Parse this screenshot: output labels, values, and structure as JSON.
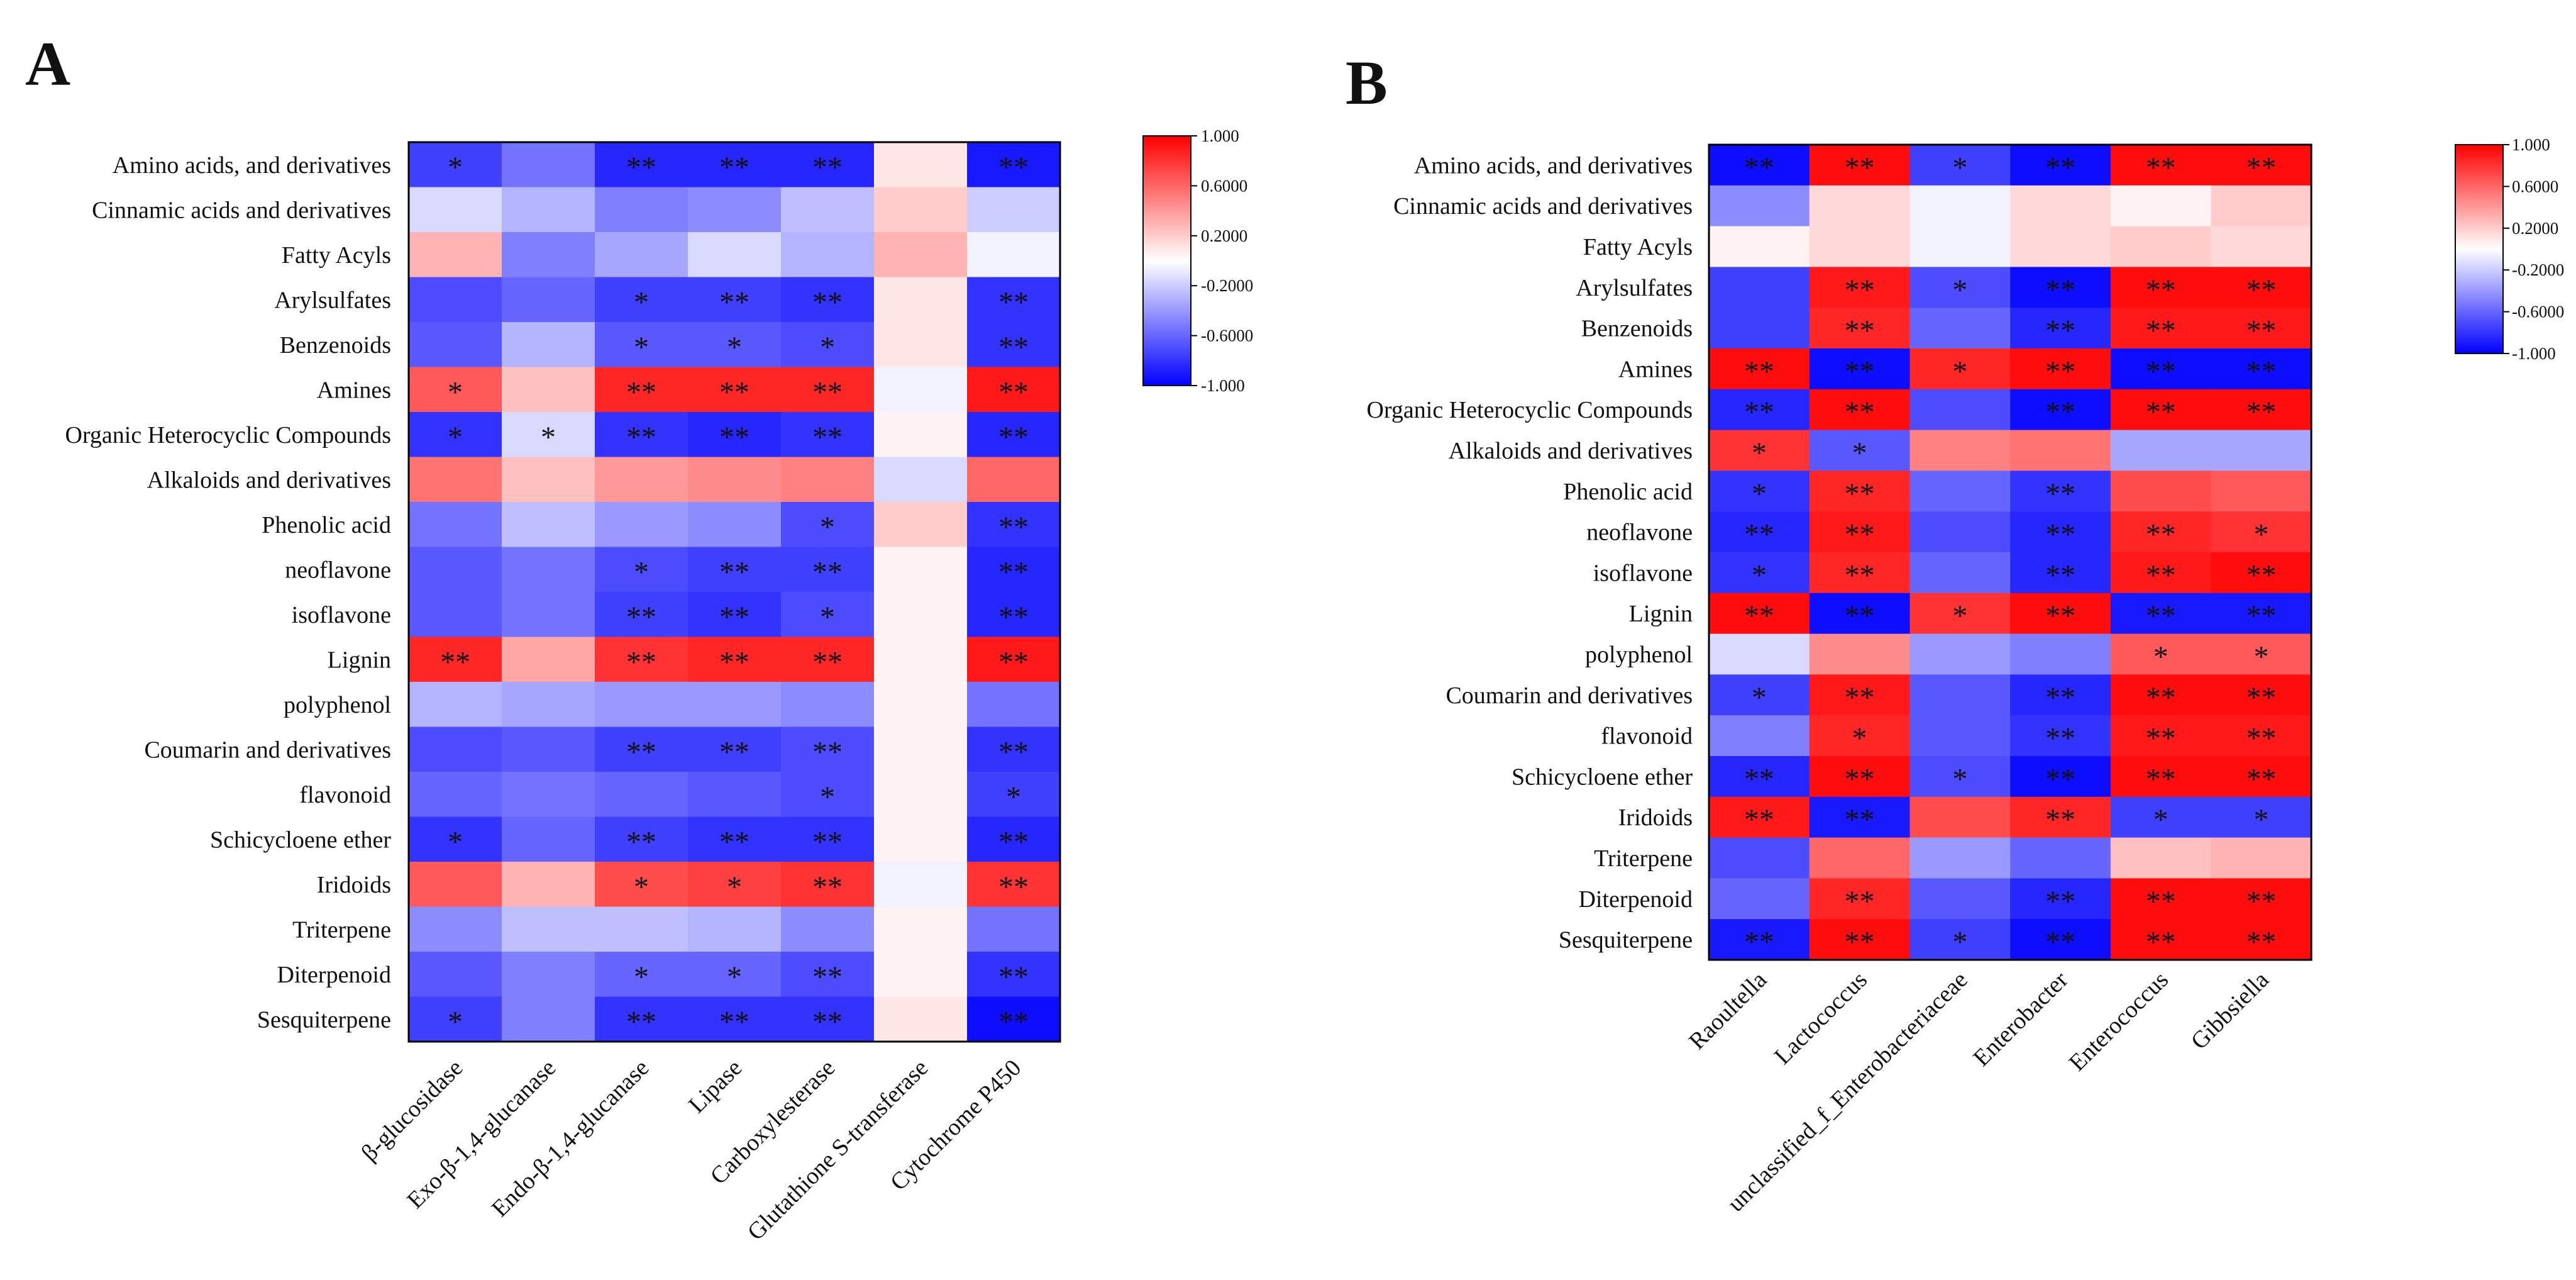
{
  "chart_data": [
    {
      "panel": "A",
      "type": "heatmap",
      "title": "",
      "rows": [
        "Amino acids, and derivatives",
        "Cinnamic acids and derivatives",
        "Fatty Acyls",
        "Arylsulfates",
        "Benzenoids",
        "Amines",
        "Organic Heterocyclic Compounds",
        "Alkaloids and derivatives",
        "Phenolic acid",
        "neoflavone",
        "isoflavone",
        "Lignin",
        "polyphenol",
        "Coumarin and derivatives",
        "flavonoid",
        "Schicycloene ether",
        "Iridoids",
        "Triterpene",
        "Diterpenoid",
        "Sesquiterpene"
      ],
      "columns": [
        "β-glucosidase",
        "Exo-β-1,4-glucanase",
        "Endo-β-1,4-glucanase",
        "Lipase",
        "Carboxylesterase",
        "Glutathione S-transferase",
        "Cytochrome P450"
      ],
      "values": [
        [
          -0.75,
          -0.55,
          -0.85,
          -0.85,
          -0.85,
          0.1,
          -0.9
        ],
        [
          -0.15,
          -0.3,
          -0.5,
          -0.45,
          -0.25,
          0.2,
          -0.2
        ],
        [
          0.3,
          -0.5,
          -0.35,
          -0.15,
          -0.3,
          0.3,
          -0.05
        ],
        [
          -0.7,
          -0.6,
          -0.75,
          -0.75,
          -0.8,
          0.1,
          -0.8
        ],
        [
          -0.65,
          -0.3,
          -0.65,
          -0.65,
          -0.7,
          0.1,
          -0.8
        ],
        [
          0.65,
          0.25,
          0.85,
          0.85,
          0.85,
          -0.05,
          0.9
        ],
        [
          -0.8,
          -0.15,
          -0.8,
          -0.85,
          -0.8,
          0.05,
          -0.85
        ],
        [
          0.55,
          0.25,
          0.4,
          0.45,
          0.5,
          -0.15,
          0.6
        ],
        [
          -0.55,
          -0.25,
          -0.4,
          -0.45,
          -0.7,
          0.2,
          -0.8
        ],
        [
          -0.65,
          -0.55,
          -0.7,
          -0.75,
          -0.75,
          0.05,
          -0.85
        ],
        [
          -0.65,
          -0.55,
          -0.75,
          -0.8,
          -0.7,
          0.05,
          -0.85
        ],
        [
          0.85,
          0.35,
          0.8,
          0.85,
          0.85,
          0.05,
          0.9
        ],
        [
          -0.3,
          -0.35,
          -0.4,
          -0.4,
          -0.45,
          0.05,
          -0.55
        ],
        [
          -0.7,
          -0.65,
          -0.75,
          -0.75,
          -0.7,
          0.05,
          -0.8
        ],
        [
          -0.6,
          -0.55,
          -0.6,
          -0.65,
          -0.7,
          0.05,
          -0.75
        ],
        [
          -0.8,
          -0.6,
          -0.75,
          -0.8,
          -0.8,
          0.05,
          -0.85
        ],
        [
          0.65,
          0.3,
          0.7,
          0.75,
          0.8,
          -0.05,
          0.8
        ],
        [
          -0.45,
          -0.25,
          -0.25,
          -0.3,
          -0.45,
          0.05,
          -0.55
        ],
        [
          -0.65,
          -0.5,
          -0.6,
          -0.6,
          -0.7,
          0.05,
          -0.8
        ],
        [
          -0.75,
          -0.5,
          -0.8,
          -0.8,
          -0.8,
          0.1,
          -0.95
        ]
      ],
      "significance": [
        [
          "*",
          "",
          "**",
          "**",
          "**",
          "",
          "**"
        ],
        [
          "",
          "",
          "",
          "",
          "",
          "",
          ""
        ],
        [
          "",
          "",
          "",
          "",
          "",
          "",
          ""
        ],
        [
          "",
          "",
          "*",
          "**",
          "**",
          "",
          "**"
        ],
        [
          "",
          "",
          "*",
          "*",
          "*",
          "",
          "**"
        ],
        [
          "*",
          "",
          "**",
          "**",
          "**",
          "",
          "**"
        ],
        [
          "*",
          "*",
          "**",
          "**",
          "**",
          "",
          "**"
        ],
        [
          "",
          "",
          "",
          "",
          "",
          "",
          ""
        ],
        [
          "",
          "",
          "",
          "",
          "*",
          "",
          "**"
        ],
        [
          "",
          "",
          "*",
          "**",
          "**",
          "",
          "**"
        ],
        [
          "",
          "",
          "**",
          "**",
          "*",
          "",
          "**"
        ],
        [
          "**",
          "",
          "**",
          "**",
          "**",
          "",
          "**"
        ],
        [
          "",
          "",
          "",
          "",
          "",
          "",
          ""
        ],
        [
          "",
          "",
          "**",
          "**",
          "**",
          "",
          "**"
        ],
        [
          "",
          "",
          "",
          "",
          "*",
          "",
          "*"
        ],
        [
          "*",
          "",
          "**",
          "**",
          "**",
          "",
          "**"
        ],
        [
          "",
          "",
          "*",
          "*",
          "**",
          "",
          "**"
        ],
        [
          "",
          "",
          "",
          "",
          "",
          "",
          ""
        ],
        [
          "",
          "",
          "*",
          "*",
          "**",
          "",
          "**"
        ],
        [
          "*",
          "",
          "**",
          "**",
          "**",
          "",
          "**"
        ]
      ],
      "colorbar": {
        "min": -1,
        "max": 1,
        "labels": [
          "1.000",
          "0.6000",
          "0.2000",
          "-0.2000",
          "-0.6000",
          "-1.000"
        ]
      }
    },
    {
      "panel": "B",
      "type": "heatmap",
      "title": "",
      "rows": [
        "Amino acids, and derivatives",
        "Cinnamic acids and derivatives",
        "Fatty Acyls",
        "Arylsulfates",
        "Benzenoids",
        "Amines",
        "Organic Heterocyclic Compounds",
        "Alkaloids and derivatives",
        "Phenolic acid",
        "neoflavone",
        "isoflavone",
        "Lignin",
        "polyphenol",
        "Coumarin and derivatives",
        "flavonoid",
        "Schicycloene ether",
        "Iridoids",
        "Triterpene",
        "Diterpenoid",
        "Sesquiterpene"
      ],
      "columns": [
        "Raoultella",
        "Lactococcus",
        "unclassified_f_Enterobacteriaceae",
        "Enterobacter",
        "Enterococcus",
        "Gibbsiella"
      ],
      "values": [
        [
          -0.95,
          0.95,
          -0.75,
          -0.95,
          0.95,
          0.95
        ],
        [
          -0.45,
          0.15,
          -0.05,
          0.15,
          0.05,
          0.2
        ],
        [
          0.05,
          0.15,
          -0.05,
          0.15,
          0.2,
          0.15
        ],
        [
          -0.75,
          0.9,
          -0.7,
          -0.95,
          0.95,
          0.95
        ],
        [
          -0.75,
          0.85,
          -0.6,
          -0.85,
          0.9,
          0.9
        ],
        [
          0.95,
          -0.95,
          0.85,
          0.95,
          -0.95,
          -0.95
        ],
        [
          -0.85,
          0.95,
          -0.7,
          -0.95,
          0.95,
          0.95
        ],
        [
          0.8,
          -0.65,
          0.5,
          0.55,
          -0.35,
          -0.35
        ],
        [
          -0.8,
          0.85,
          -0.6,
          -0.8,
          0.7,
          0.65
        ],
        [
          -0.85,
          0.9,
          -0.7,
          -0.85,
          0.85,
          0.8
        ],
        [
          -0.8,
          0.85,
          -0.6,
          -0.85,
          0.9,
          0.95
        ],
        [
          0.95,
          -0.95,
          0.8,
          0.95,
          -0.9,
          -0.9
        ],
        [
          -0.15,
          0.45,
          -0.4,
          -0.5,
          0.65,
          0.65
        ],
        [
          -0.75,
          0.9,
          -0.65,
          -0.85,
          0.95,
          0.95
        ],
        [
          -0.5,
          0.85,
          -0.65,
          -0.8,
          0.9,
          0.9
        ],
        [
          -0.85,
          0.95,
          -0.7,
          -0.95,
          0.95,
          0.95
        ],
        [
          0.9,
          -0.9,
          0.7,
          0.85,
          -0.75,
          -0.75
        ],
        [
          -0.7,
          0.6,
          -0.4,
          -0.6,
          0.25,
          0.3
        ],
        [
          -0.6,
          0.85,
          -0.65,
          -0.85,
          0.95,
          0.95
        ],
        [
          -0.9,
          0.95,
          -0.75,
          -0.95,
          0.95,
          0.95
        ]
      ],
      "significance": [
        [
          "**",
          "**",
          "*",
          "**",
          "**",
          "**"
        ],
        [
          "",
          "",
          "",
          "",
          "",
          ""
        ],
        [
          "",
          "",
          "",
          "",
          "",
          ""
        ],
        [
          "",
          "**",
          "*",
          "**",
          "**",
          "**"
        ],
        [
          "",
          "**",
          "",
          "**",
          "**",
          "**"
        ],
        [
          "**",
          "**",
          "*",
          "**",
          "**",
          "**"
        ],
        [
          "**",
          "**",
          "",
          "**",
          "**",
          "**"
        ],
        [
          "*",
          "*",
          "",
          "",
          "",
          ""
        ],
        [
          "*",
          "**",
          "",
          "**",
          "",
          ""
        ],
        [
          "**",
          "**",
          "",
          "**",
          "**",
          "*"
        ],
        [
          "*",
          "**",
          "",
          "**",
          "**",
          "**"
        ],
        [
          "**",
          "**",
          "*",
          "**",
          "**",
          "**"
        ],
        [
          "",
          "",
          "",
          "",
          "*",
          "*"
        ],
        [
          "*",
          "**",
          "",
          "**",
          "**",
          "**"
        ],
        [
          "",
          "*",
          "",
          "**",
          "**",
          "**"
        ],
        [
          "**",
          "**",
          "*",
          "**",
          "**",
          "**"
        ],
        [
          "**",
          "**",
          "",
          "**",
          "*",
          "*"
        ],
        [
          "",
          "",
          "",
          "",
          "",
          ""
        ],
        [
          "",
          "**",
          "",
          "**",
          "**",
          "**"
        ],
        [
          "**",
          "**",
          "*",
          "**",
          "**",
          "**"
        ]
      ],
      "colorbar": {
        "min": -1,
        "max": 1,
        "labels": [
          "1.000",
          "0.6000",
          "0.2000",
          "-0.2000",
          "-0.6000",
          "-1.000"
        ]
      }
    }
  ]
}
